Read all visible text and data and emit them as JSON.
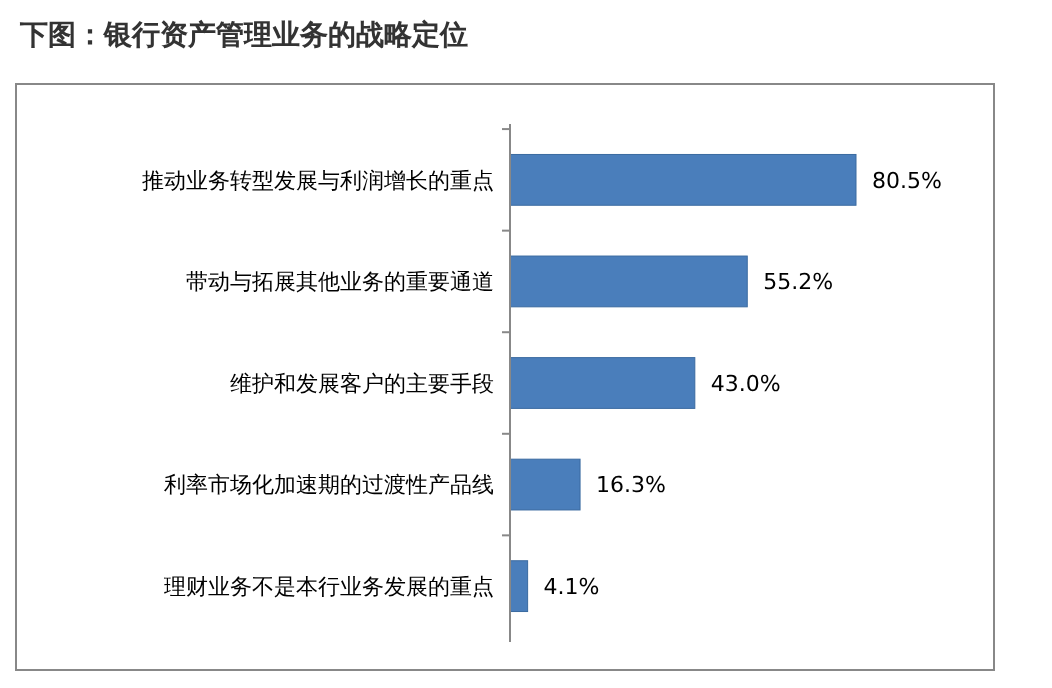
{
  "chart_data": {
    "type": "bar",
    "orientation": "horizontal",
    "title": "下图：银行资产管理业务的战略定位",
    "categories": [
      "推动业务转型发展与利润增长的重点",
      "带动与拓展其他业务的重要通道",
      "维护和发展客户的主要手段",
      "利率市场化加速期的过渡性产品线",
      "理财业务不是本行业务发展的重点"
    ],
    "values": [
      80.5,
      55.2,
      43.0,
      16.3,
      4.1
    ],
    "value_labels": [
      "80.5%",
      "55.2%",
      "43.0%",
      "16.3%",
      "4.1%"
    ],
    "color": "#4a7ebb"
  }
}
